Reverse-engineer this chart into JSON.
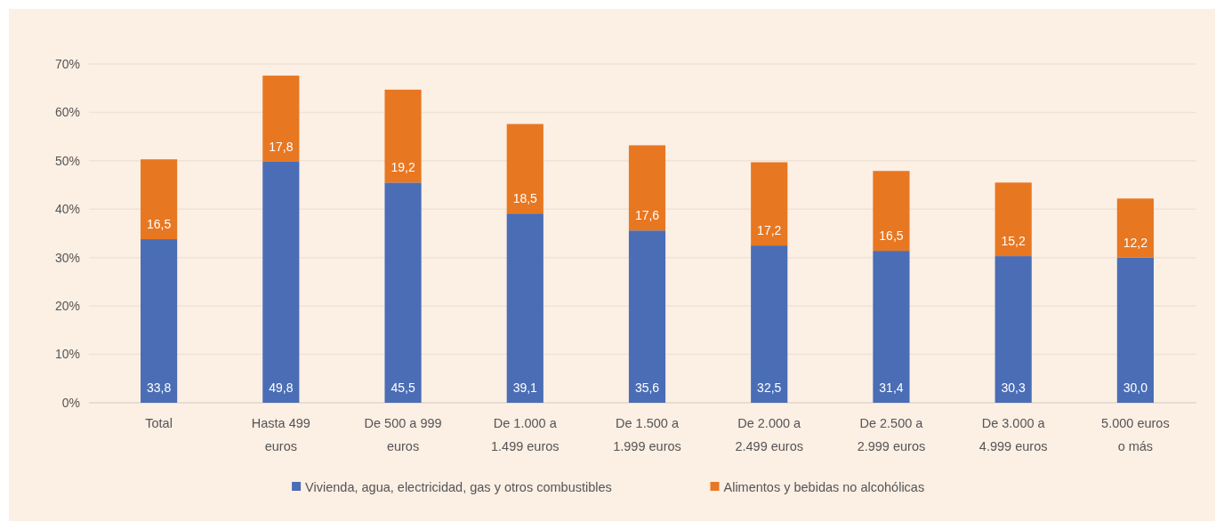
{
  "chart_data": {
    "type": "bar",
    "stacked": true,
    "categories": [
      "Total",
      "Hasta 499 euros",
      "De 500 a 999 euros",
      "De 1.000 a 1.499 euros",
      "De 1.500 a 1.999 euros",
      "De 2.000 a 2.499 euros",
      "De 2.500 a 2.999 euros",
      "De 3.000 a 4.999 euros",
      "5.000 euros o más"
    ],
    "series": [
      {
        "name": "Vivienda, agua, electricidad, gas y otros combustibles",
        "color": "#4a6db5",
        "values": [
          33.8,
          49.8,
          45.5,
          39.1,
          35.6,
          32.5,
          31.4,
          30.3,
          30.0
        ],
        "value_labels": [
          "33,8",
          "49,8",
          "45,5",
          "39,1",
          "35,6",
          "32,5",
          "31,4",
          "30,3",
          "30,0"
        ]
      },
      {
        "name": "Alimentos y bebidas no alcohólicas",
        "color": "#e87722",
        "values": [
          16.5,
          17.8,
          19.2,
          18.5,
          17.6,
          17.2,
          16.5,
          15.2,
          12.2
        ],
        "value_labels": [
          "16,5",
          "17,8",
          "19,2",
          "18,5",
          "17,6",
          "17,2",
          "16,5",
          "15,2",
          "12,2"
        ]
      }
    ],
    "ylim": [
      0,
      70
    ],
    "yticks": [
      {
        "value": 0,
        "label": "0%"
      },
      {
        "value": 10,
        "label": "10%"
      },
      {
        "value": 20,
        "label": "20%"
      },
      {
        "value": 30,
        "label": "30%"
      },
      {
        "value": 40,
        "label": "40%"
      },
      {
        "value": 50,
        "label": "50%"
      },
      {
        "value": 60,
        "label": "60%"
      },
      {
        "value": 70,
        "label": "70%"
      }
    ],
    "grid": "y",
    "legend": "bottom"
  }
}
